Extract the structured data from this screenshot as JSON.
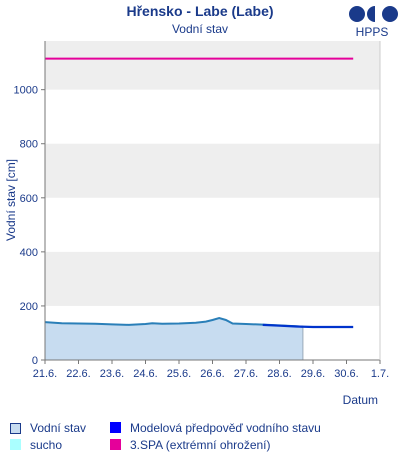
{
  "chart_data": {
    "type": "line",
    "title": "Hřensko - Labe (Labe)",
    "subtitle": "Vodní stav",
    "logo_text": "HPPS",
    "ylabel": "Vodní stav [cm]",
    "xlabel": "Datum",
    "ylim": [
      0,
      1180
    ],
    "yticks": [
      0,
      200,
      400,
      600,
      800,
      1000
    ],
    "x_categories": [
      "21.6.",
      "22.6.",
      "23.6.",
      "24.6.",
      "25.6.",
      "26.6.",
      "27.6.",
      "28.6.",
      "29.6.",
      "30.6.",
      "1.7."
    ],
    "xlim_days": [
      0,
      10
    ],
    "grid": "alternating horizontal bands",
    "series": [
      {
        "name": "Vodní stav",
        "color": "#2a7fb8",
        "fill": "#c7dcf0",
        "points": [
          {
            "day": 0.0,
            "value": 140
          },
          {
            "day": 0.5,
            "value": 136
          },
          {
            "day": 1.0,
            "value": 135
          },
          {
            "day": 1.5,
            "value": 134
          },
          {
            "day": 2.0,
            "value": 132
          },
          {
            "day": 2.5,
            "value": 130
          },
          {
            "day": 3.0,
            "value": 133
          },
          {
            "day": 3.2,
            "value": 136
          },
          {
            "day": 3.5,
            "value": 134
          },
          {
            "day": 4.0,
            "value": 135
          },
          {
            "day": 4.5,
            "value": 138
          },
          {
            "day": 4.8,
            "value": 142
          },
          {
            "day": 5.0,
            "value": 148
          },
          {
            "day": 5.2,
            "value": 155
          },
          {
            "day": 5.4,
            "value": 148
          },
          {
            "day": 5.6,
            "value": 135
          },
          {
            "day": 6.0,
            "value": 133
          },
          {
            "day": 6.5,
            "value": 131
          },
          {
            "day": 7.0,
            "value": 128
          },
          {
            "day": 7.5,
            "value": 125
          },
          {
            "day": 7.7,
            "value": 123
          }
        ]
      },
      {
        "name": "Modelová předpověď vodního stavu",
        "color": "#0033cc",
        "points": [
          {
            "day": 6.5,
            "value": 130
          },
          {
            "day": 7.0,
            "value": 127
          },
          {
            "day": 7.5,
            "value": 124
          },
          {
            "day": 8.0,
            "value": 122
          },
          {
            "day": 8.5,
            "value": 122
          },
          {
            "day": 9.2,
            "value": 122
          }
        ]
      },
      {
        "name": "3.SPA (extrémní ohrožení)",
        "color": "#e5009a",
        "constant": 1115,
        "from_day": 0,
        "to_day": 9.2
      }
    ],
    "dry_area": {
      "name": "sucho",
      "color": "#aaffff"
    }
  },
  "legend": [
    {
      "label": "Vodní stav",
      "color": "#c7dcf0",
      "border": "#1a3a8a"
    },
    {
      "label": "Modelová předpověď vodního stavu",
      "color": "#0000ff",
      "border": "#0000ff"
    },
    {
      "label": "sucho",
      "color": "#aaffff",
      "border": "#aaffff"
    },
    {
      "label": "3.SPA (extrémní ohrožení)",
      "color": "#e5009a",
      "border": "#e5009a"
    }
  ]
}
